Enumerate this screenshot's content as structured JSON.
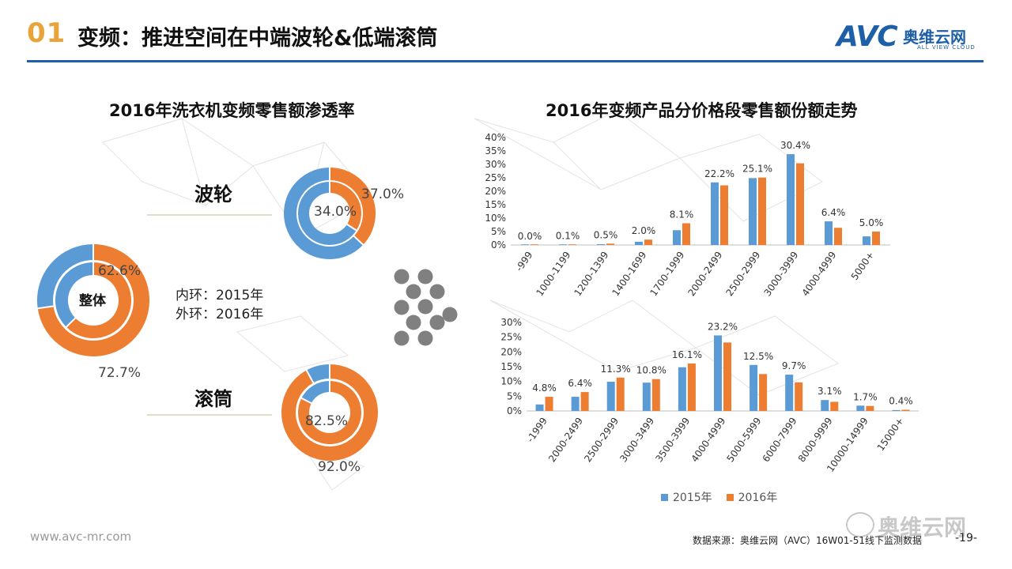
{
  "header": {
    "number": "01",
    "title": "变频：推进空间在中端波轮&低端滚筒",
    "logo": {
      "mark": "AVC",
      "name_cn": "奥维云网",
      "name_en": "ALL VIEW CLOUD"
    }
  },
  "left": {
    "title": "2016年洗衣机变频零售额渗透率",
    "ring_legend": {
      "inner": "内环：2015年",
      "outer": "外环：2016年"
    },
    "donuts": [
      {
        "id": "overall",
        "label": "整体",
        "inner_2015": 62.6,
        "outer_2016": 72.7,
        "inner_text": "62.6%",
        "outer_text": "72.7%"
      },
      {
        "id": "pulsator",
        "label": "波轮",
        "inner_2015": 34.0,
        "outer_2016": 37.0,
        "inner_text": "34.0%",
        "outer_text": "37.0%"
      },
      {
        "id": "drum",
        "label": "滚筒",
        "inner_2015": 82.5,
        "outer_2016": 92.0,
        "inner_text": "82.5%",
        "outer_text": "92.0%"
      }
    ]
  },
  "colors": {
    "c2015": "#5b9bd5",
    "c2016": "#ed7d31",
    "gold": "#e8a43a",
    "blue_brand": "#1f5fa8",
    "dots": "#808080"
  },
  "right": {
    "title": "2016年变频产品分价格段零售额份额走势"
  },
  "chart_data": [
    {
      "type": "bar",
      "title": "2016年变频产品分价格段零售额份额走势",
      "subset": "波轮",
      "categories": [
        "-999",
        "1000-1199",
        "1200-1399",
        "1400-1699",
        "1700-1999",
        "2000-2499",
        "2500-2999",
        "3000-3999",
        "4000-4999",
        "5000+"
      ],
      "series": [
        {
          "name": "2015年",
          "values": [
            0.0,
            0.0,
            0.3,
            1.2,
            5.5,
            23.3,
            24.9,
            33.8,
            8.8,
            3.2
          ]
        },
        {
          "name": "2016年",
          "values": [
            0.0,
            0.1,
            0.5,
            2.0,
            8.1,
            22.2,
            25.1,
            30.4,
            6.4,
            5.0
          ]
        }
      ],
      "data_labels": [
        "0.0%",
        "0.1%",
        "0.5%",
        "2.0%",
        "8.1%",
        "22.2%",
        "25.1%",
        "30.4%",
        "6.4%",
        "5.0%"
      ],
      "ylim": [
        0,
        40
      ],
      "yticks": [
        "0%",
        "5%",
        "10%",
        "15%",
        "20%",
        "25%",
        "30%",
        "35%",
        "40%"
      ]
    },
    {
      "type": "bar",
      "subset": "滚筒",
      "categories": [
        "-1999",
        "2000-2499",
        "2500-2999",
        "3000-3499",
        "3500-3999",
        "4000-4999",
        "5000-5999",
        "6000-7999",
        "8000-9999",
        "10000-14999",
        "15000+"
      ],
      "series": [
        {
          "name": "2015年",
          "values": [
            2.2,
            4.8,
            9.9,
            9.6,
            14.8,
            25.6,
            15.6,
            12.3,
            3.7,
            1.8,
            0.3
          ]
        },
        {
          "name": "2016年",
          "values": [
            4.8,
            6.4,
            11.3,
            10.8,
            16.1,
            23.2,
            12.5,
            9.7,
            3.1,
            1.7,
            0.4
          ]
        }
      ],
      "data_labels": [
        "4.8%",
        "6.4%",
        "11.3%",
        "10.8%",
        "16.1%",
        "23.2%",
        "12.5%",
        "9.7%",
        "3.1%",
        "1.7%",
        "0.4%"
      ],
      "ylim": [
        0,
        30
      ],
      "yticks": [
        "0%",
        "5%",
        "10%",
        "15%",
        "20%",
        "25%",
        "30%"
      ],
      "legend": [
        "2015年",
        "2016年"
      ]
    }
  ],
  "footer": {
    "url": "www.avc-mr.com",
    "source": "数据来源：奥维云网（AVC）16W01-51线下监测数据",
    "page": "-19-",
    "watermark": "奥维云网"
  }
}
